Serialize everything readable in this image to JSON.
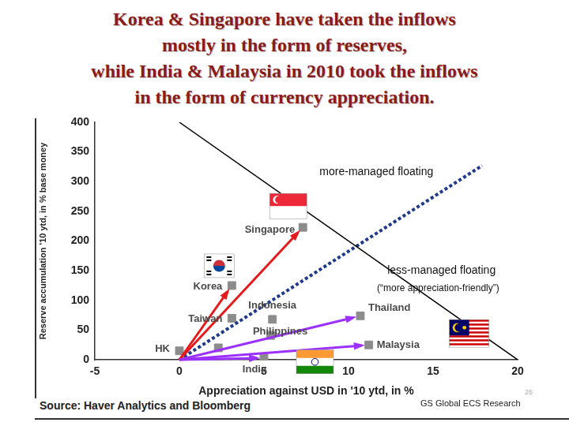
{
  "chart_data": {
    "type": "scatter",
    "title": [
      "Korea & Singapore have taken the inflows",
      "mostly in the form of reserves,",
      "while India & Malaysia in 2010 took the inflows",
      "in the form of currency appreciation."
    ],
    "x_label": "Appreciation against USD in '10 ytd, in %",
    "y_label": "Reserve accumulation '10 ytd, in % base money",
    "source": "Source: Haver Analytics and Bloomberg",
    "credit": "GS Global ECS Research",
    "page": 26,
    "labels": [
      "Singapore",
      "Korea",
      "Taiwan",
      "Indonesia",
      "Philippines",
      "HK",
      null,
      "Thailand",
      "Malaysia",
      "India"
    ],
    "x": [
      7.3,
      3.1,
      3.1,
      5.5,
      5.4,
      0,
      2.3,
      10.7,
      11.2,
      5
    ],
    "values": [
      223,
      125,
      70,
      68,
      41,
      15,
      20,
      74,
      25,
      3
    ],
    "color": "#8c8c8c",
    "marker": "square",
    "lines": [
      {
        "x": [
          0,
          20
        ],
        "values": [
          400,
          0
        ],
        "color": "#000000",
        "line_style": "solid"
      },
      {
        "x": [
          0,
          17.9
        ],
        "values": [
          0,
          327
        ],
        "color": "#1f3a8a",
        "line_style": "dotted"
      }
    ],
    "arrows": [
      {
        "from": [
          0,
          0
        ],
        "to": "Singapore",
        "color": "#e41a1c"
      },
      {
        "from": [
          0,
          0
        ],
        "to": "Korea",
        "color": "#e41a1c"
      },
      {
        "from": [
          0,
          0
        ],
        "to": "Thailand",
        "color": "#9b30ff"
      },
      {
        "from": [
          0,
          0
        ],
        "to": "Malaysia",
        "color": "#9b30ff"
      },
      {
        "from": [
          0,
          0
        ],
        "to": "India",
        "color": "#9b30ff"
      }
    ],
    "annotations": [
      "more-managed floating",
      "less-managed floating",
      "(“more appreciation-friendly”)"
    ],
    "xlim": [
      -5,
      20
    ],
    "xticks": [
      -5,
      0,
      5,
      10,
      15,
      20
    ],
    "ylim": [
      0,
      400
    ],
    "yticks": [
      0,
      50,
      100,
      150,
      200,
      250,
      300,
      350,
      400
    ],
    "grid": false
  }
}
